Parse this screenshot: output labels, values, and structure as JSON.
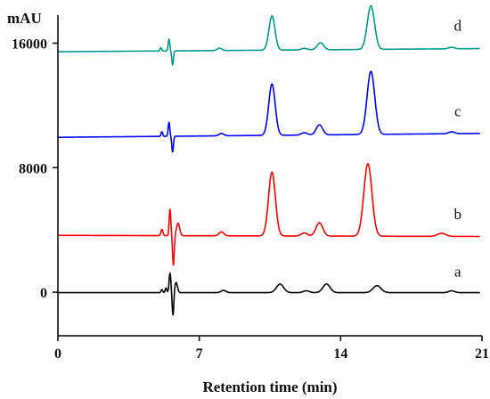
{
  "chart_data": {
    "type": "line",
    "title": "",
    "ylabel": "mAU",
    "xlabel": "Retention time (min)",
    "xlim": [
      0,
      21
    ],
    "ylim": [
      -2800,
      17800
    ],
    "x_ticks": [
      0,
      7,
      14,
      21
    ],
    "y_ticks": [
      0,
      8000,
      16000
    ],
    "grid": false,
    "legend": "none",
    "series": [
      {
        "name": "a",
        "color": "#000000",
        "x_end": 20.9,
        "baseline": [
          [
            0,
            -30
          ],
          [
            20.9,
            -30
          ]
        ],
        "peaks": [
          [
            5.15,
            200,
            0.04
          ],
          [
            5.35,
            300,
            0.04
          ],
          [
            5.55,
            1250,
            0.045
          ],
          [
            5.7,
            -1500,
            0.04
          ],
          [
            5.85,
            650,
            0.07
          ],
          [
            8.2,
            150,
            0.12
          ],
          [
            11.0,
            550,
            0.18
          ],
          [
            12.3,
            120,
            0.15
          ],
          [
            13.3,
            550,
            0.18
          ],
          [
            15.8,
            450,
            0.2
          ],
          [
            19.5,
            120,
            0.15
          ]
        ]
      },
      {
        "name": "b",
        "color": "#ff0000",
        "x_end": 20.9,
        "baseline": [
          [
            0,
            3650
          ],
          [
            20.9,
            3580
          ]
        ],
        "peaks": [
          [
            5.15,
            400,
            0.05
          ],
          [
            5.55,
            1700,
            0.04
          ],
          [
            5.72,
            -1900,
            0.04
          ],
          [
            5.95,
            800,
            0.08
          ],
          [
            8.1,
            250,
            0.12
          ],
          [
            10.6,
            4100,
            0.17
          ],
          [
            12.2,
            200,
            0.15
          ],
          [
            12.95,
            850,
            0.17
          ],
          [
            15.35,
            4650,
            0.2
          ],
          [
            19.0,
            200,
            0.2
          ]
        ]
      },
      {
        "name": "c",
        "color": "#0000ff",
        "x_end": 20.9,
        "baseline": [
          [
            0,
            9950
          ],
          [
            20.9,
            10200
          ]
        ],
        "peaks": [
          [
            5.15,
            300,
            0.04
          ],
          [
            5.5,
            900,
            0.04
          ],
          [
            5.68,
            -1000,
            0.04
          ],
          [
            8.1,
            150,
            0.12
          ],
          [
            10.6,
            3300,
            0.16
          ],
          [
            12.2,
            150,
            0.15
          ],
          [
            12.95,
            650,
            0.16
          ],
          [
            15.5,
            4050,
            0.19
          ],
          [
            19.5,
            120,
            0.15
          ]
        ]
      },
      {
        "name": "d",
        "color": "#009a8e",
        "x_end": 20.9,
        "baseline": [
          [
            0,
            15450
          ],
          [
            20.9,
            15650
          ]
        ],
        "peaks": [
          [
            5.1,
            200,
            0.04
          ],
          [
            5.5,
            750,
            0.04
          ],
          [
            5.68,
            -900,
            0.04
          ],
          [
            8.0,
            150,
            0.12
          ],
          [
            10.6,
            2200,
            0.15
          ],
          [
            12.2,
            100,
            0.15
          ],
          [
            13.0,
            450,
            0.16
          ],
          [
            15.5,
            2800,
            0.18
          ],
          [
            19.5,
            100,
            0.15
          ]
        ]
      }
    ],
    "trace_labels": [
      {
        "text": "a",
        "x": 19.8,
        "y": 1000
      },
      {
        "text": "b",
        "x": 19.8,
        "y": 4700
      },
      {
        "text": "c",
        "x": 19.8,
        "y": 11300
      },
      {
        "text": "d",
        "x": 19.8,
        "y": 16800
      }
    ]
  }
}
